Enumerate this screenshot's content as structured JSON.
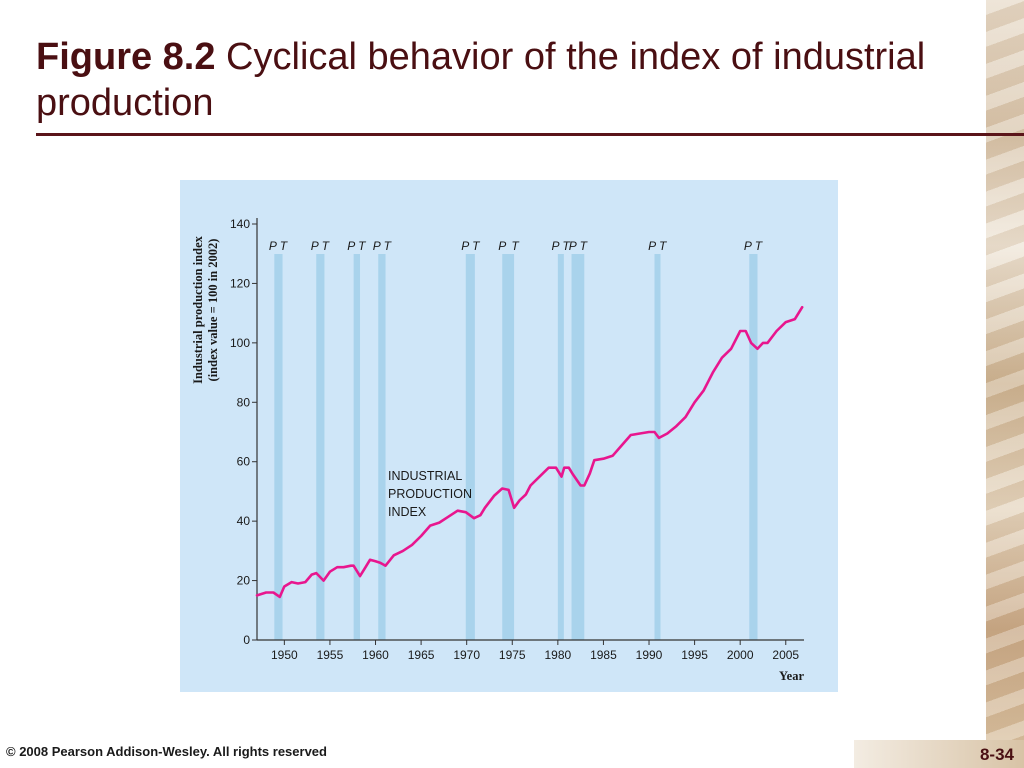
{
  "slide": {
    "title_figure": "Figure 8.2",
    "title_text": " Cyclical behavior of the index of industrial production",
    "footer": "© 2008 Pearson Addison-Wesley. All rights reserved",
    "page_number": "8-34"
  },
  "colors": {
    "title": "#4a0f12",
    "panel_background": "#cfe6f8",
    "recession_band": "#a9d3ec",
    "series_line": "#e8168e"
  },
  "chart_data": {
    "type": "line",
    "ylabel_line1": "Industrial production index",
    "ylabel_line2": "(index value = 100 in 2002)",
    "xlabel": "Year",
    "ylim": [
      0,
      140
    ],
    "xlim": [
      1947,
      2007
    ],
    "y_ticks": [
      0,
      20,
      40,
      60,
      80,
      100,
      120,
      140
    ],
    "x_ticks": [
      1950,
      1955,
      1960,
      1965,
      1970,
      1975,
      1980,
      1985,
      1990,
      1995,
      2000,
      2005
    ],
    "annotation": [
      "INDUSTRIAL",
      "PRODUCTION",
      "INDEX"
    ],
    "recessions": [
      {
        "peak": 1948.9,
        "trough": 1949.8
      },
      {
        "peak": 1953.5,
        "trough": 1954.4
      },
      {
        "peak": 1957.6,
        "trough": 1958.3
      },
      {
        "peak": 1960.3,
        "trough": 1961.1
      },
      {
        "peak": 1969.9,
        "trough": 1970.9
      },
      {
        "peak": 1973.9,
        "trough": 1975.2
      },
      {
        "peak": 1980.0,
        "trough": 1980.6
      },
      {
        "peak": 1981.5,
        "trough": 1982.9
      },
      {
        "peak": 1990.6,
        "trough": 1991.2
      },
      {
        "peak": 2001.0,
        "trough": 2001.9
      }
    ],
    "band_labels": [
      {
        "text": "P T",
        "x": 1949.3
      },
      {
        "text": "P T",
        "x": 1953.9
      },
      {
        "text": "P T",
        "x": 1957.9
      },
      {
        "text": "P T",
        "x": 1960.7
      },
      {
        "text": "P T",
        "x": 1970.4
      },
      {
        "text": "P",
        "x": 1973.9
      },
      {
        "text": "T",
        "x": 1975.3
      },
      {
        "text": "P T",
        "x": 1980.3
      },
      {
        "text": "P T",
        "x": 1982.2
      },
      {
        "text": "P T",
        "x": 1990.9
      },
      {
        "text": "P T",
        "x": 2001.4
      }
    ],
    "series": [
      {
        "x": [
          1947,
          1948,
          1948.8,
          1949.5,
          1950,
          1950.8,
          1951.5,
          1952.3,
          1953,
          1953.5,
          1954.3,
          1955,
          1955.8,
          1956.5,
          1957.3,
          1957.6,
          1958.3,
          1958.8,
          1959.4,
          1960,
          1960.5,
          1961.1,
          1962,
          1963,
          1964,
          1965,
          1966,
          1967,
          1968,
          1969,
          1969.9,
          1970.8,
          1971.5,
          1972,
          1973,
          1973.9,
          1974.6,
          1975.2,
          1975.8,
          1976.5,
          1977,
          1978,
          1979,
          1979.8,
          1980.4,
          1980.7,
          1981.2,
          1981.6,
          1982.5,
          1982.9,
          1983.5,
          1984,
          1985,
          1986,
          1987,
          1988,
          1989,
          1990,
          1990.6,
          1991.1,
          1992,
          1993,
          1994,
          1995,
          1996,
          1997,
          1998,
          1999,
          2000,
          2000.6,
          2001.2,
          2001.9,
          2002.5,
          2003,
          2004,
          2005,
          2006,
          2006.8
        ],
        "y": [
          15,
          16,
          16,
          14.5,
          18,
          19.5,
          19,
          19.5,
          22,
          22.5,
          20,
          23,
          24.5,
          24.5,
          25,
          25,
          21.5,
          24,
          27,
          26.5,
          26,
          25,
          28.5,
          30,
          32,
          35,
          38.5,
          39.5,
          41.5,
          43.5,
          43,
          41,
          42,
          44.5,
          48.5,
          51,
          50.5,
          44.5,
          47,
          49,
          52,
          55,
          58,
          58,
          55,
          58,
          58,
          56,
          52,
          52,
          56,
          60.5,
          61,
          62,
          65.5,
          69,
          69.5,
          70,
          70,
          68,
          69.5,
          72,
          75,
          80,
          84,
          90,
          95,
          98,
          104,
          104,
          100,
          98,
          100,
          100,
          104,
          107,
          108,
          112
        ]
      }
    ]
  }
}
